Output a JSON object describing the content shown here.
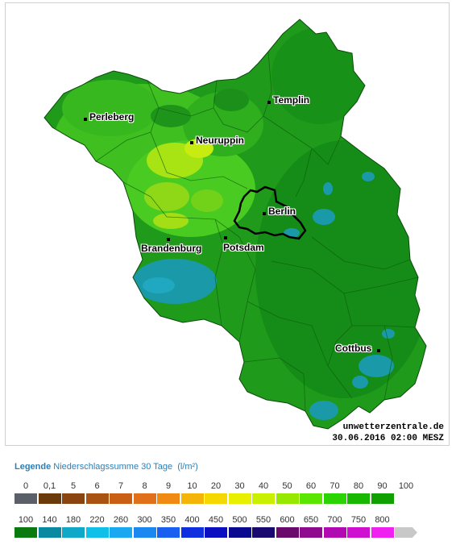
{
  "map": {
    "credit_site": "unwetterzentrale.de",
    "credit_timestamp": "30.06.2016 02:00 MESZ",
    "cities": [
      {
        "id": "perleberg",
        "label": "Perleberg"
      },
      {
        "id": "templin",
        "label": "Templin"
      },
      {
        "id": "neuruppin",
        "label": "Neuruppin"
      },
      {
        "id": "berlin",
        "label": "Berlin"
      },
      {
        "id": "potsdam",
        "label": "Potsdam"
      },
      {
        "id": "brandenburg",
        "label": "Brandenburg"
      },
      {
        "id": "cottbus",
        "label": "Cottbus"
      }
    ]
  },
  "legend": {
    "title": "Legende",
    "subtitle": "Niederschlagssumme 30 Tage",
    "unit": "(l/m²)",
    "row1": [
      {
        "label": "0",
        "color": "#5a5f6a"
      },
      {
        "label": "0,1",
        "color": "#6b3a0a"
      },
      {
        "label": "5",
        "color": "#8a4410"
      },
      {
        "label": "6",
        "color": "#a85214"
      },
      {
        "label": "7",
        "color": "#c85f14"
      },
      {
        "label": "8",
        "color": "#e0701a"
      },
      {
        "label": "9",
        "color": "#f08a12"
      },
      {
        "label": "10",
        "color": "#f5b40a"
      },
      {
        "label": "20",
        "color": "#f5d800"
      },
      {
        "label": "30",
        "color": "#e8f000"
      },
      {
        "label": "40",
        "color": "#c8f000"
      },
      {
        "label": "50",
        "color": "#96e800"
      },
      {
        "label": "60",
        "color": "#5ae600"
      },
      {
        "label": "70",
        "color": "#2ad400"
      },
      {
        "label": "80",
        "color": "#18b800"
      },
      {
        "label": "90",
        "color": "#10a000"
      },
      {
        "label": "100",
        "color": ""
      }
    ],
    "row2": [
      {
        "label": "100",
        "color": "#087a10"
      },
      {
        "label": "140",
        "color": "#0a8aa0"
      },
      {
        "label": "180",
        "color": "#10a8c8"
      },
      {
        "label": "220",
        "color": "#10c0e8"
      },
      {
        "label": "260",
        "color": "#1aa8f0"
      },
      {
        "label": "300",
        "color": "#1a88f0"
      },
      {
        "label": "350",
        "color": "#1a60f0"
      },
      {
        "label": "400",
        "color": "#1030e0"
      },
      {
        "label": "450",
        "color": "#0a10c0"
      },
      {
        "label": "500",
        "color": "#0a0a90"
      },
      {
        "label": "550",
        "color": "#1a0a70"
      },
      {
        "label": "600",
        "color": "#6a0a6a"
      },
      {
        "label": "650",
        "color": "#900a90"
      },
      {
        "label": "700",
        "color": "#b00ab0"
      },
      {
        "label": "750",
        "color": "#d010d0"
      },
      {
        "label": "800",
        "color": "#f020f0"
      },
      {
        "label": "",
        "color": "#c8c8c8"
      }
    ]
  }
}
